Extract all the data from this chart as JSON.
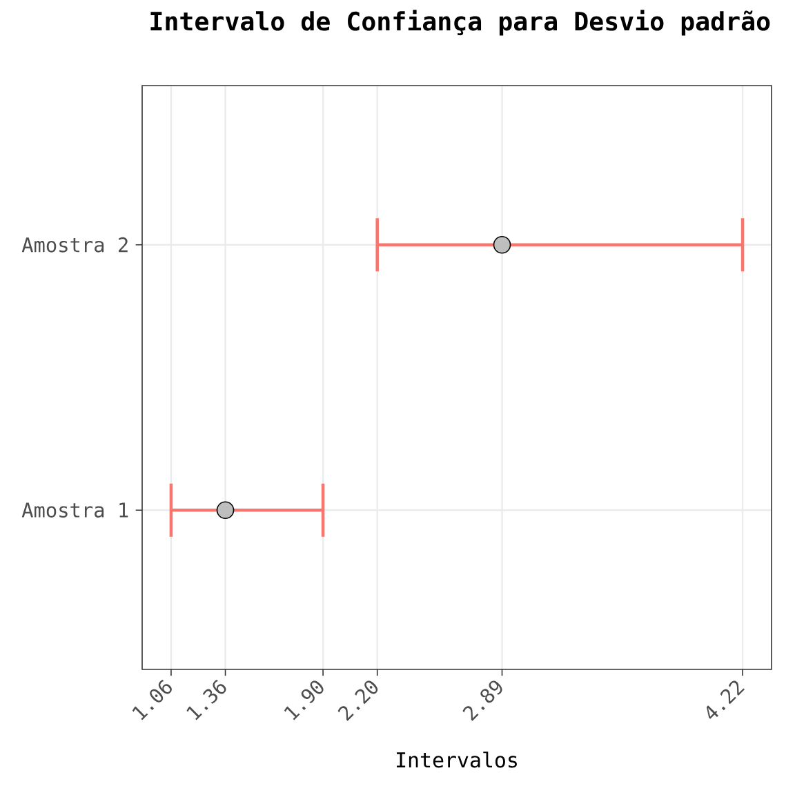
{
  "chart_data": {
    "type": "scatter",
    "orientation": "horizontal",
    "title": "Intervalo de Confiança para Desvio padrão",
    "xlabel": "Intervalos",
    "categories": [
      "Amostra 2",
      "Amostra 1"
    ],
    "series": [
      {
        "color": "#f8766d",
        "colors": [
          "#bebebe",
          "#bebebe"
        ],
        "values": [
          2.89,
          1.36
        ],
        "errors": [
          [
            2.2,
            4.22
          ],
          [
            1.06,
            1.9
          ]
        ]
      }
    ],
    "xlim": [
      0.9,
      4.38
    ],
    "xticks": [
      1.06,
      1.36,
      {
        "value": 1.9,
        "label": "1.90"
      },
      {
        "value": 2.2,
        "label": "2.20"
      },
      2.89,
      4.22
    ],
    "grid": true,
    "marker": "circle"
  }
}
